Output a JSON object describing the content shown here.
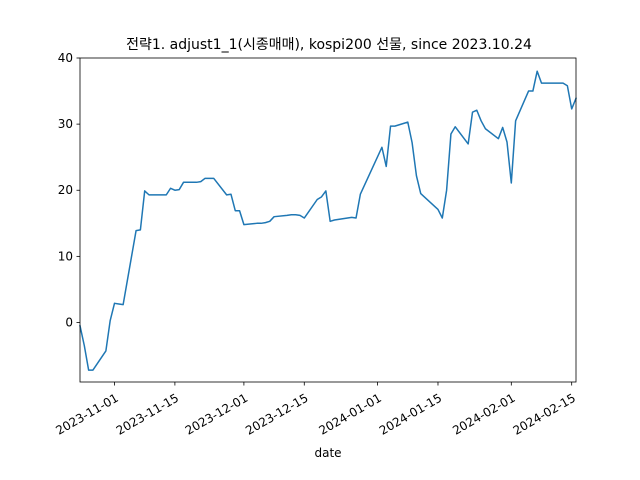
{
  "chart_data": {
    "type": "line",
    "title": "전략1. adjust1_1(시종매매), kospi200 선물, since 2023.10.24",
    "xlabel": "date",
    "ylabel": "",
    "grid": false,
    "legend": "none",
    "xlim": [
      "2023-10-24",
      "2024-02-16"
    ],
    "ylim": [
      -9,
      40
    ],
    "x_ticks": [
      "2023-11-01",
      "2023-11-15",
      "2023-12-01",
      "2023-12-15",
      "2024-01-01",
      "2024-01-15",
      "2024-02-01",
      "2024-02-15"
    ],
    "y_ticks": [
      0,
      10,
      20,
      30,
      40
    ],
    "series": [
      {
        "color": "#1f77b4",
        "x": [
          "2023-10-24",
          "2023-10-25",
          "2023-10-26",
          "2023-10-27",
          "2023-10-30",
          "2023-10-31",
          "2023-11-01",
          "2023-11-02",
          "2023-11-03",
          "2023-11-06",
          "2023-11-07",
          "2023-11-08",
          "2023-11-09",
          "2023-11-10",
          "2023-11-13",
          "2023-11-14",
          "2023-11-15",
          "2023-11-16",
          "2023-11-17",
          "2023-11-20",
          "2023-11-21",
          "2023-11-22",
          "2023-11-23",
          "2023-11-24",
          "2023-11-27",
          "2023-11-28",
          "2023-11-29",
          "2023-11-30",
          "2023-12-01",
          "2023-12-04",
          "2023-12-05",
          "2023-12-06",
          "2023-12-07",
          "2023-12-08",
          "2023-12-11",
          "2023-12-12",
          "2023-12-13",
          "2023-12-14",
          "2023-12-15",
          "2023-12-18",
          "2023-12-19",
          "2023-12-20",
          "2023-12-21",
          "2023-12-22",
          "2023-12-26",
          "2023-12-27",
          "2023-12-28",
          "2024-01-02",
          "2024-01-03",
          "2024-01-04",
          "2024-01-05",
          "2024-01-08",
          "2024-01-09",
          "2024-01-10",
          "2024-01-11",
          "2024-01-12",
          "2024-01-15",
          "2024-01-16",
          "2024-01-17",
          "2024-01-18",
          "2024-01-19",
          "2024-01-22",
          "2024-01-23",
          "2024-01-24",
          "2024-01-25",
          "2024-01-26",
          "2024-01-29",
          "2024-01-30",
          "2024-01-31",
          "2024-02-01",
          "2024-02-02",
          "2024-02-05",
          "2024-02-06",
          "2024-02-07",
          "2024-02-08",
          "2024-02-13",
          "2024-02-14",
          "2024-02-15",
          "2024-02-16"
        ],
        "values": [
          -0.5,
          -3.5,
          -7.2,
          -7.2,
          -4.3,
          0.3,
          2.9,
          2.8,
          2.7,
          13.9,
          14.0,
          19.9,
          19.3,
          19.3,
          19.3,
          20.3,
          20.0,
          20.1,
          21.2,
          21.2,
          21.3,
          21.8,
          21.8,
          21.8,
          19.3,
          19.4,
          16.9,
          16.9,
          14.8,
          15.0,
          15.0,
          15.1,
          15.3,
          16.0,
          16.2,
          16.3,
          16.3,
          16.2,
          15.8,
          18.6,
          19.0,
          19.9,
          15.3,
          15.5,
          15.9,
          15.8,
          19.4,
          26.5,
          23.6,
          29.7,
          29.7,
          30.3,
          27.2,
          22.2,
          19.5,
          18.9,
          17.1,
          15.8,
          20.0,
          28.5,
          29.6,
          27.0,
          31.8,
          32.1,
          30.5,
          29.3,
          27.8,
          29.5,
          27.3,
          21.1,
          30.5,
          35.0,
          35.0,
          38.0,
          36.2,
          36.2,
          35.8,
          32.3,
          33.9
        ]
      }
    ]
  }
}
